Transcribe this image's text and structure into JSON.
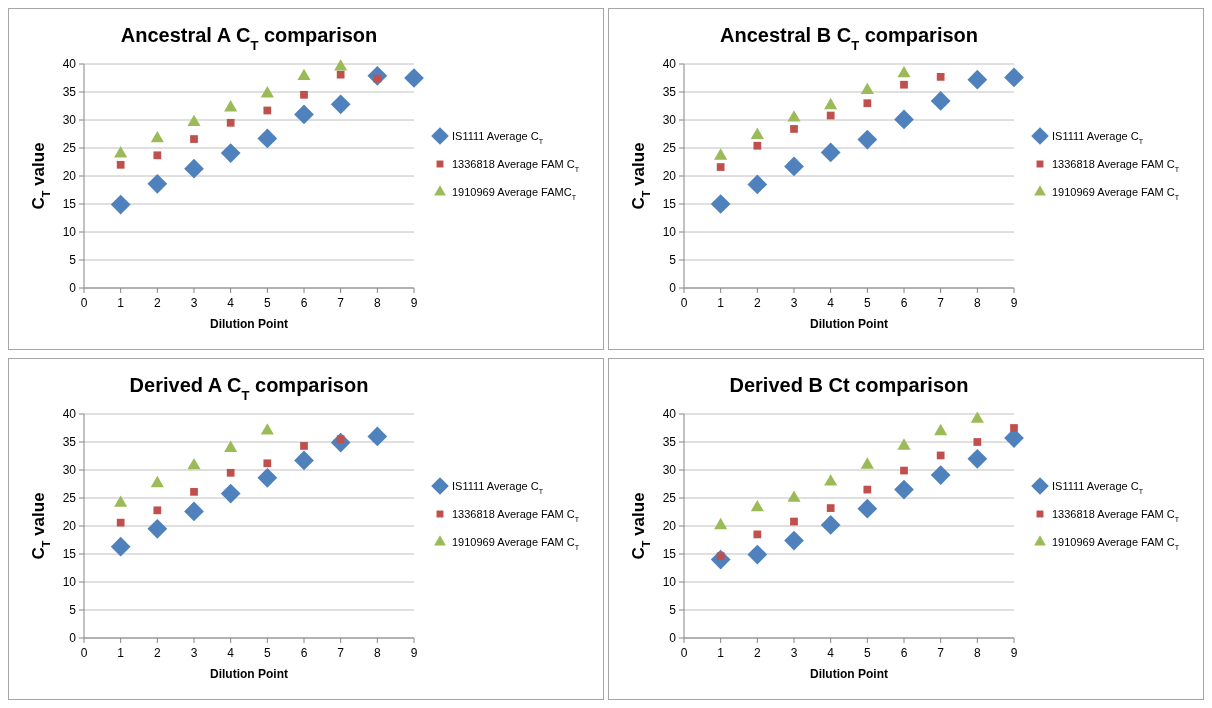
{
  "chart_data": [
    {
      "type": "scatter",
      "title": "Ancestral A C$_{T}$ comparison",
      "xlabel": "Dilution Point",
      "ylabel": "C$_{T}$ value",
      "xlim": [
        0,
        9
      ],
      "xticks": [
        0,
        1,
        2,
        3,
        4,
        5,
        6,
        7,
        8,
        9
      ],
      "ylim": [
        0,
        40
      ],
      "yticks": [
        0,
        5,
        10,
        15,
        20,
        25,
        30,
        35,
        40
      ],
      "grid": "y",
      "legend": "right",
      "series": [
        {
          "name": "IS1111 Average C$_{T}$",
          "color": "#4f81bd",
          "marker": "diamond",
          "x": [
            1,
            2,
            3,
            4,
            5,
            6,
            7,
            8,
            9
          ],
          "values": [
            14.9,
            18.6,
            21.3,
            24.1,
            26.7,
            31.0,
            32.8,
            37.9,
            37.5
          ]
        },
        {
          "name": "1336818 Average FAM C$_{T}$",
          "color": "#c0504d",
          "marker": "square",
          "x": [
            1,
            2,
            3,
            4,
            5,
            6,
            7,
            8
          ],
          "values": [
            22.0,
            23.7,
            26.6,
            29.5,
            31.7,
            34.5,
            38.1,
            37.4
          ]
        },
        {
          "name": "1910969 Average FAMC$_{T}$",
          "color": "#9bbb59",
          "marker": "triangle",
          "x": [
            1,
            2,
            3,
            4,
            5,
            6,
            7
          ],
          "values": [
            24.0,
            26.7,
            29.6,
            32.2,
            34.7,
            37.8,
            39.5
          ]
        }
      ]
    },
    {
      "type": "scatter",
      "title": "Ancestral B C$_{T}$ comparison",
      "xlabel": "Dilution Point",
      "ylabel": "C$_{T}$ value",
      "xlim": [
        0,
        9
      ],
      "xticks": [
        0,
        1,
        2,
        3,
        4,
        5,
        6,
        7,
        8,
        9
      ],
      "ylim": [
        0,
        40
      ],
      "yticks": [
        0,
        5,
        10,
        15,
        20,
        25,
        30,
        35,
        40
      ],
      "grid": "y",
      "legend": "right",
      "series": [
        {
          "name": "IS1111 Average C$_{T}$",
          "color": "#4f81bd",
          "marker": "diamond",
          "x": [
            1,
            2,
            3,
            4,
            5,
            6,
            7,
            8,
            9
          ],
          "values": [
            15.0,
            18.5,
            21.7,
            24.2,
            26.5,
            30.1,
            33.4,
            37.2,
            37.6
          ]
        },
        {
          "name": "1336818 Average FAM C$_{T}$",
          "color": "#c0504d",
          "marker": "square",
          "x": [
            1,
            2,
            3,
            4,
            5,
            6,
            7
          ],
          "values": [
            21.6,
            25.4,
            28.4,
            30.8,
            33.0,
            36.3,
            37.7
          ]
        },
        {
          "name": "1910969 Average FAM C$_{T}$",
          "color": "#9bbb59",
          "marker": "triangle",
          "x": [
            1,
            2,
            3,
            4,
            5,
            6
          ],
          "values": [
            23.6,
            27.3,
            30.4,
            32.6,
            35.3,
            38.3
          ]
        }
      ]
    },
    {
      "type": "scatter",
      "title": "Derived A  C$_{T}$ comparison",
      "xlabel": "Dilution Point",
      "ylabel": "C$_{T}$ value",
      "xlim": [
        0,
        9
      ],
      "xticks": [
        0,
        1,
        2,
        3,
        4,
        5,
        6,
        7,
        8,
        9
      ],
      "ylim": [
        0,
        40
      ],
      "yticks": [
        0,
        5,
        10,
        15,
        20,
        25,
        30,
        35,
        40
      ],
      "grid": "y",
      "legend": "right",
      "series": [
        {
          "name": "IS1111 Average C$_{T}$",
          "color": "#4f81bd",
          "marker": "diamond",
          "x": [
            1,
            2,
            3,
            4,
            5,
            6,
            7,
            8
          ],
          "values": [
            16.3,
            19.5,
            22.6,
            25.8,
            28.6,
            31.7,
            34.9,
            36.0
          ]
        },
        {
          "name": "1336818 Average FAM C$_{T}$",
          "color": "#c0504d",
          "marker": "square",
          "x": [
            1,
            2,
            3,
            4,
            5,
            6,
            7
          ],
          "values": [
            20.6,
            22.8,
            26.1,
            29.5,
            31.2,
            34.3,
            35.5
          ]
        },
        {
          "name": "1910969 Average FAM C$_{T}$",
          "color": "#9bbb59",
          "marker": "triangle",
          "x": [
            1,
            2,
            3,
            4,
            5
          ],
          "values": [
            24.1,
            27.6,
            30.8,
            33.9,
            37.0
          ]
        }
      ]
    },
    {
      "type": "scatter",
      "title": "Derived B  Ct comparison",
      "xlabel": "Dilution Point",
      "ylabel": "C$_{T}$ value",
      "xlim": [
        0,
        9
      ],
      "xticks": [
        0,
        1,
        2,
        3,
        4,
        5,
        6,
        7,
        8,
        9
      ],
      "ylim": [
        0,
        40
      ],
      "yticks": [
        0,
        5,
        10,
        15,
        20,
        25,
        30,
        35,
        40
      ],
      "grid": "y",
      "legend": "right",
      "series": [
        {
          "name": "IS1111 Average C$_{T}$",
          "color": "#4f81bd",
          "marker": "diamond",
          "x": [
            1,
            2,
            3,
            4,
            5,
            6,
            7,
            8,
            9
          ],
          "values": [
            14.0,
            14.9,
            17.4,
            20.2,
            23.1,
            26.5,
            29.1,
            32.0,
            35.7
          ]
        },
        {
          "name": "1336818 Average FAM C$_{T}$",
          "color": "#c0504d",
          "marker": "square",
          "x": [
            1,
            2,
            3,
            4,
            5,
            6,
            7,
            8,
            9
          ],
          "values": [
            14.6,
            18.5,
            20.8,
            23.2,
            26.5,
            29.9,
            32.6,
            35.0,
            37.5
          ]
        },
        {
          "name": "1910969 Average FAM C$_{T}$",
          "color": "#9bbb59",
          "marker": "triangle",
          "x": [
            1,
            2,
            3,
            4,
            5,
            6,
            7,
            8
          ],
          "values": [
            20.1,
            23.3,
            25.0,
            27.9,
            30.9,
            34.3,
            36.9,
            39.1
          ]
        }
      ]
    }
  ]
}
